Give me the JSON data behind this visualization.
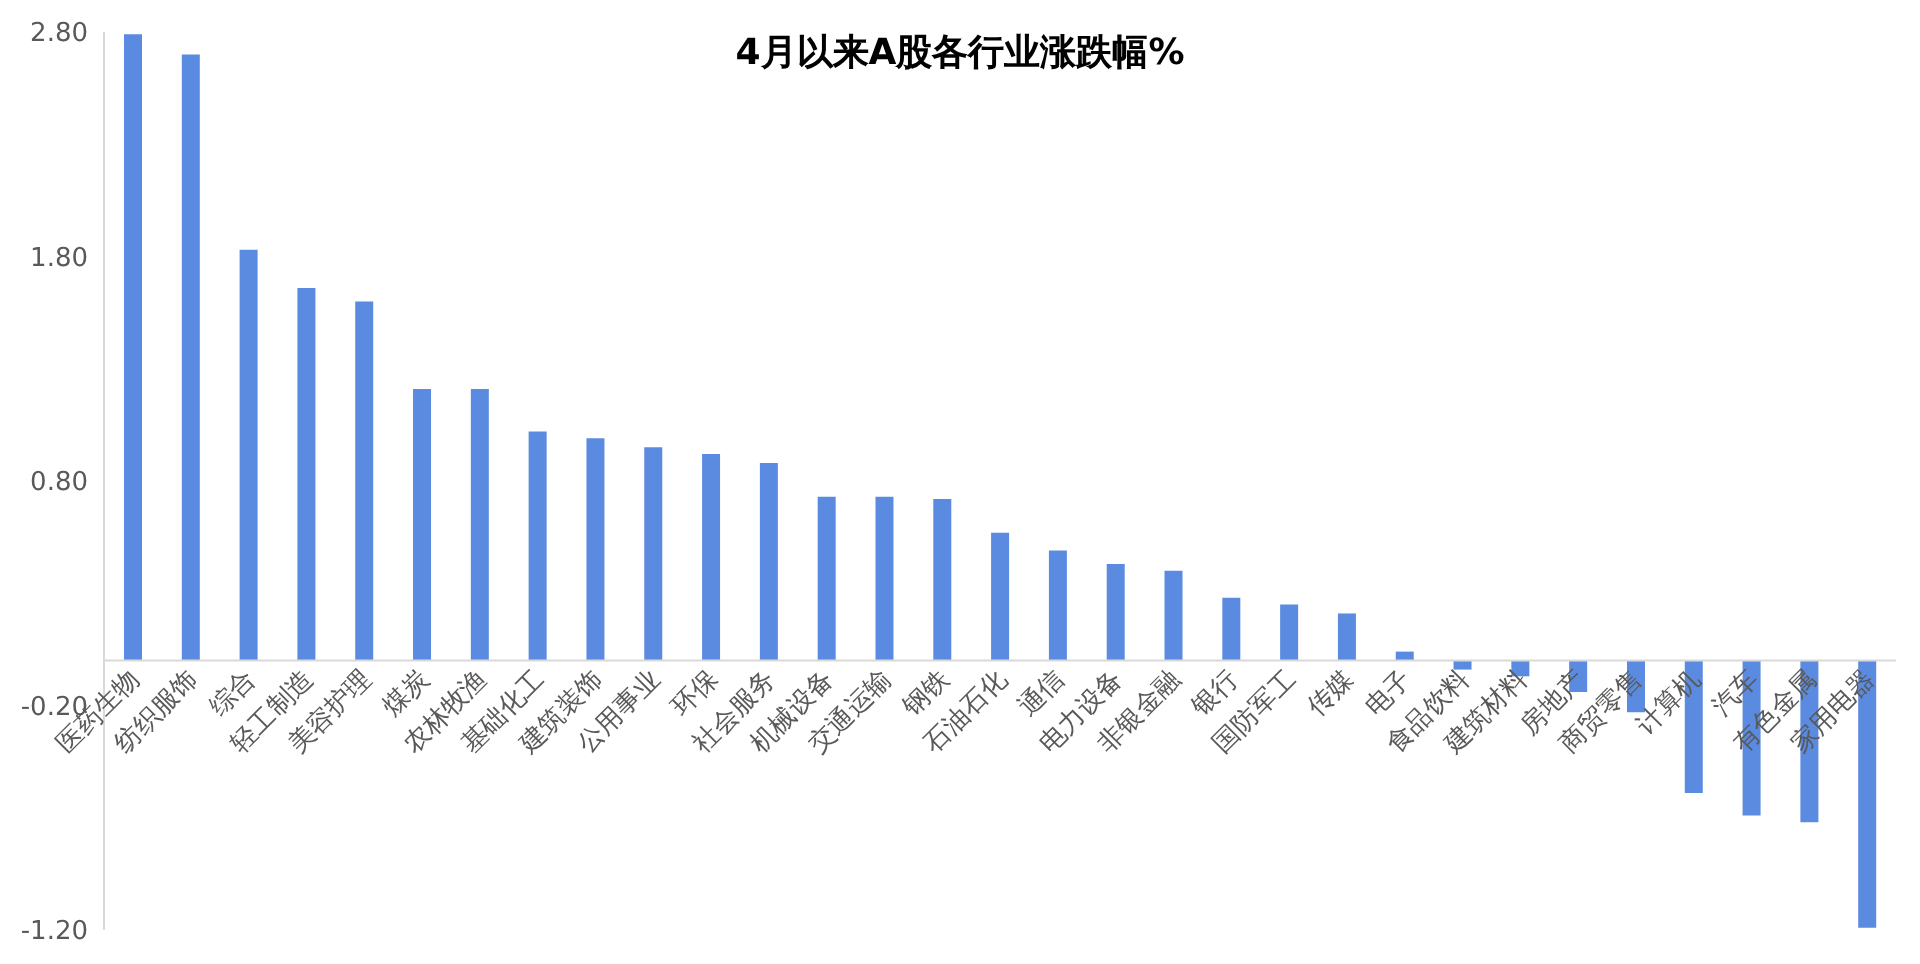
{
  "chart_data": {
    "type": "bar",
    "title": "4月以来A股各行业涨跌幅%",
    "categories": [
      "医药生物",
      "纺织服饰",
      "综合",
      "轻工制造",
      "美容护理",
      "煤炭",
      "农林牧渔",
      "基础化工",
      "建筑装饰",
      "公用事业",
      "环保",
      "社会服务",
      "机械设备",
      "交通运输",
      "钢铁",
      "石油石化",
      "通信",
      "电力设备",
      "非银金融",
      "银行",
      "国防军工",
      "传媒",
      "电子",
      "食品饮料",
      "建筑材料",
      "房地产",
      "商贸零售",
      "计算机",
      "汽车",
      "有色金属",
      "家用电器"
    ],
    "values": [
      2.79,
      2.7,
      1.83,
      1.66,
      1.6,
      1.21,
      1.21,
      1.02,
      0.99,
      0.95,
      0.92,
      0.88,
      0.73,
      0.73,
      0.72,
      0.57,
      0.49,
      0.43,
      0.4,
      0.28,
      0.25,
      0.21,
      0.04,
      -0.04,
      -0.07,
      -0.14,
      -0.23,
      -0.59,
      -0.69,
      -0.72,
      -1.19
    ],
    "color": "#5b8be0",
    "ylim": [
      -1.2,
      2.8
    ],
    "yticks": [
      {
        "value": -1.2,
        "label": "-1.20"
      },
      {
        "value": -0.2,
        "label": "-0.20"
      },
      {
        "value": 0.8,
        "label": "0.80"
      },
      {
        "value": 1.8,
        "label": "1.80"
      },
      {
        "value": 2.8,
        "label": "2.80"
      }
    ],
    "grid": false
  }
}
